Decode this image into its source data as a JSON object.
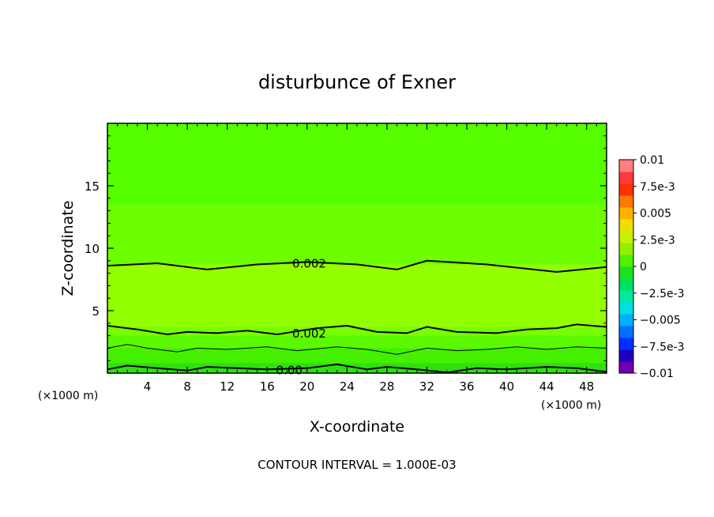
{
  "chart_data": {
    "type": "heatmap",
    "subtype": "filled-contour",
    "title": "disturbunce of Exner",
    "xlabel": "X-coordinate",
    "ylabel": "Z-coordinate",
    "x_unit_left": "(×1000 m)",
    "x_unit_right": "(×1000 m)",
    "xlim": [
      0,
      50
    ],
    "ylim": [
      0,
      20
    ],
    "x_ticks": [
      4,
      8,
      12,
      16,
      20,
      24,
      28,
      32,
      36,
      40,
      44,
      48
    ],
    "y_ticks": [
      5,
      10,
      15
    ],
    "footer": "CONTOUR INTERVAL = 1.000E-03",
    "colorbar": {
      "labels": [
        "0.01",
        "7.5e-3",
        "0.005",
        "2.5e-3",
        "0",
        "−2.5e-3",
        "−0.005",
        "−7.5e-3",
        "−0.01"
      ],
      "label_values": [
        0.01,
        0.0075,
        0.005,
        0.0025,
        0,
        -0.0025,
        -0.005,
        -0.0075,
        -0.01
      ],
      "vmin": -0.01,
      "vmax": 0.01,
      "colors_low_to_high": [
        "#7000b0",
        "#2000c0",
        "#0030ff",
        "#0070ff",
        "#00b0ff",
        "#00e0e0",
        "#00e8a0",
        "#00e060",
        "#20e020",
        "#50f000",
        "#90f000",
        "#c8f000",
        "#f0e000",
        "#ffb000",
        "#ff7800",
        "#ff3000",
        "#ff3a3a",
        "#ff8080"
      ]
    },
    "bands": [
      {
        "z_top": 20,
        "value": 0.001,
        "color": "#55ff00"
      },
      {
        "z_top": 13.5,
        "value": 0.0015,
        "color": "#6dff00"
      },
      {
        "z_top": 8.7,
        "value": 0.002,
        "color": "#94ff00"
      },
      {
        "z_top": 3.7,
        "value": 0.0018,
        "color": "#75ff00"
      },
      {
        "z_top": 3.0,
        "value": 0.0015,
        "color": "#5cf800"
      },
      {
        "z_top": 2.0,
        "value": 0.001,
        "color": "#44f000"
      },
      {
        "z_top": 0.8,
        "value": 0.0002,
        "color": "#2ee010"
      }
    ],
    "contours": [
      {
        "value": 0.002,
        "label": "0.002",
        "label_x": 18,
        "points": [
          [
            0,
            8.6
          ],
          [
            5,
            8.8
          ],
          [
            10,
            8.3
          ],
          [
            15,
            8.7
          ],
          [
            20,
            8.9
          ],
          [
            25,
            8.7
          ],
          [
            29,
            8.3
          ],
          [
            32,
            9.0
          ],
          [
            38,
            8.7
          ],
          [
            45,
            8.1
          ],
          [
            50,
            8.5
          ]
        ],
        "width": 2
      },
      {
        "value": 0.002,
        "label": "0.002",
        "label_x": 18,
        "points": [
          [
            0,
            3.8
          ],
          [
            3,
            3.5
          ],
          [
            6,
            3.1
          ],
          [
            8,
            3.3
          ],
          [
            11,
            3.2
          ],
          [
            14,
            3.4
          ],
          [
            17,
            3.1
          ],
          [
            21,
            3.6
          ],
          [
            24,
            3.8
          ],
          [
            27,
            3.3
          ],
          [
            30,
            3.2
          ],
          [
            32,
            3.7
          ],
          [
            35,
            3.3
          ],
          [
            39,
            3.2
          ],
          [
            42,
            3.5
          ],
          [
            45,
            3.6
          ],
          [
            47,
            3.9
          ],
          [
            50,
            3.7
          ]
        ],
        "width": 2
      },
      {
        "value": 0.001,
        "label": "",
        "label_x": 0,
        "points": [
          [
            0,
            2.0
          ],
          [
            2,
            2.3
          ],
          [
            4,
            2.0
          ],
          [
            7,
            1.7
          ],
          [
            9,
            2.0
          ],
          [
            12,
            1.9
          ],
          [
            16,
            2.1
          ],
          [
            19,
            1.8
          ],
          [
            23,
            2.1
          ],
          [
            26,
            1.9
          ],
          [
            29,
            1.5
          ],
          [
            32,
            2.0
          ],
          [
            35,
            1.8
          ],
          [
            38,
            1.9
          ],
          [
            41,
            2.1
          ],
          [
            44,
            1.9
          ],
          [
            47,
            2.1
          ],
          [
            50,
            2.0
          ]
        ],
        "width": 1
      },
      {
        "value": 0.0,
        "label": "0.00",
        "label_x": 16,
        "points": [
          [
            0,
            0.3
          ],
          [
            2,
            0.6
          ],
          [
            5,
            0.4
          ],
          [
            8,
            0.2
          ],
          [
            10,
            0.5
          ],
          [
            13,
            0.4
          ],
          [
            16,
            0.3
          ],
          [
            20,
            0.4
          ],
          [
            23,
            0.7
          ],
          [
            26,
            0.3
          ],
          [
            28,
            0.5
          ],
          [
            31,
            0.3
          ],
          [
            34,
            0.05
          ],
          [
            37,
            0.4
          ],
          [
            40,
            0.3
          ],
          [
            44,
            0.5
          ],
          [
            47,
            0.4
          ],
          [
            50,
            0.1
          ]
        ],
        "width": 2
      }
    ]
  }
}
